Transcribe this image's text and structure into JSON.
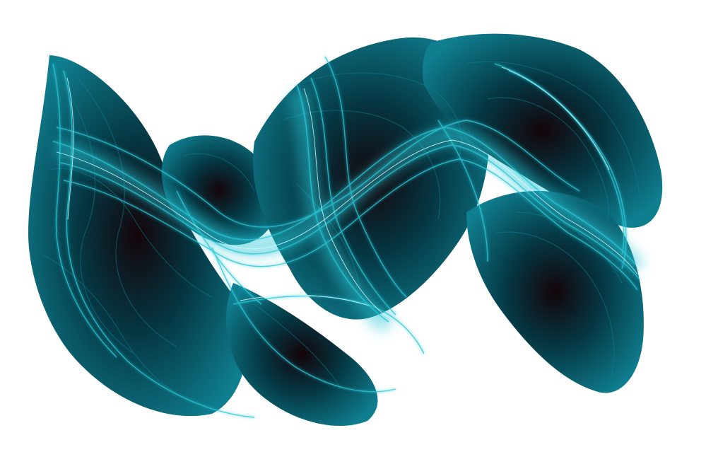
{
  "artwork": {
    "subject": "cyan-light-ribbon-abstract",
    "palette": {
      "background": "#ffffff",
      "deep": "#14050a",
      "dark_teal": "#053743",
      "mid_teal": "#0f7f90",
      "cyan": "#2cc7d6",
      "highlight": "#c8fbff"
    }
  }
}
